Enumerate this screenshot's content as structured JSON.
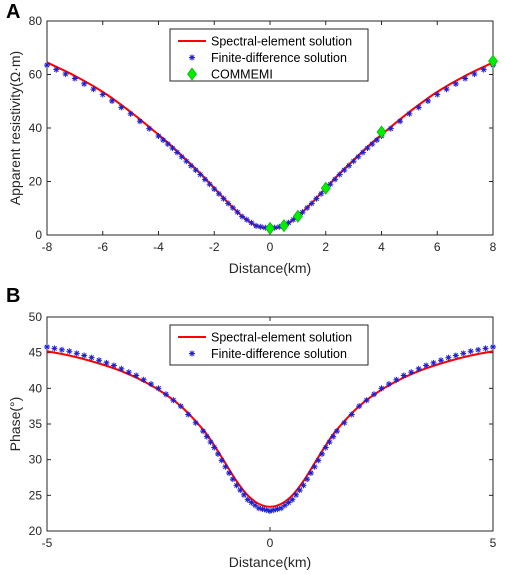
{
  "chart_data": [
    {
      "panel": "A",
      "type": "line",
      "xlabel": "Distance(km)",
      "ylabel": "Apparent resistivity(Ω·m)",
      "xlim": [
        -8,
        8
      ],
      "ylim": [
        0,
        80
      ],
      "xticks": [
        -8,
        -6,
        -4,
        -2,
        0,
        2,
        4,
        6,
        8
      ],
      "yticks": [
        0,
        20,
        40,
        60,
        80
      ],
      "grid": false,
      "legend_position": "top-center",
      "series": [
        {
          "name": "Spectral-element solution",
          "style": "line",
          "color": "#ff0000",
          "x": [
            -8,
            -7,
            -6,
            -5,
            -4,
            -3.5,
            -3,
            -2.5,
            -2,
            -1.5,
            -1,
            -0.5,
            0,
            0.5,
            1,
            1.5,
            2,
            2.5,
            3,
            3.5,
            4,
            5,
            6,
            7,
            8
          ],
          "y": [
            64.5,
            59.5,
            53.5,
            46,
            37.5,
            33,
            28,
            23,
            17.5,
            12,
            7,
            3.5,
            2.5,
            3.5,
            7,
            12,
            17.5,
            23,
            28,
            33,
            37.5,
            46,
            53.5,
            59.5,
            64.5
          ]
        },
        {
          "name": "Finite-difference solution",
          "style": "marker",
          "marker": "asterisk",
          "color": "#1f1fd0",
          "x": [
            -8,
            -7,
            -6,
            -5,
            -4,
            -3.5,
            -3,
            -2.5,
            -2,
            -1.5,
            -1,
            -0.5,
            0,
            0.5,
            1,
            1.5,
            2,
            2.5,
            3,
            3.5,
            4,
            5,
            6,
            7,
            8
          ],
          "y": [
            63.5,
            58.5,
            52.5,
            45.3,
            37,
            32.5,
            27.6,
            22.6,
            17.2,
            11.8,
            6.9,
            3.4,
            2.4,
            3.4,
            6.9,
            11.8,
            17.2,
            22.6,
            27.6,
            32.5,
            37,
            45.3,
            52.5,
            58.5,
            63.5
          ]
        },
        {
          "name": "COMMEMI",
          "style": "marker",
          "marker": "diamond",
          "color": "#00ee00",
          "x": [
            0,
            0.5,
            1,
            2,
            4,
            8
          ],
          "y": [
            2.5,
            3.5,
            7,
            17.5,
            38.5,
            65
          ]
        }
      ]
    },
    {
      "panel": "B",
      "type": "line",
      "xlabel": "Distance(km)",
      "ylabel": "Phase(°)",
      "xlim": [
        -5,
        5
      ],
      "ylim": [
        20,
        50
      ],
      "xticks": [
        -5,
        0,
        5
      ],
      "yticks": [
        20,
        25,
        30,
        35,
        40,
        45,
        50
      ],
      "grid": false,
      "legend_position": "top-center",
      "series": [
        {
          "name": "Spectral-element solution",
          "style": "line",
          "color": "#ff0000",
          "x": [
            -5,
            -4.5,
            -4,
            -3.5,
            -3,
            -2.5,
            -2,
            -1.5,
            -1.25,
            -1,
            -0.75,
            -0.5,
            -0.25,
            0,
            0.25,
            0.5,
            0.75,
            1,
            1.25,
            1.5,
            2,
            2.5,
            3,
            3.5,
            4,
            4.5,
            5
          ],
          "y": [
            45.2,
            44.6,
            43.8,
            42.8,
            41.5,
            39.8,
            37.5,
            34.2,
            32,
            29.5,
            27,
            25,
            23.8,
            23.4,
            23.8,
            25,
            27,
            29.5,
            32,
            34.2,
            37.5,
            39.8,
            41.5,
            42.8,
            43.8,
            44.6,
            45.2
          ]
        },
        {
          "name": "Finite-difference solution",
          "style": "marker",
          "marker": "asterisk",
          "color": "#1f1fd0",
          "x": [
            -5,
            -4.5,
            -4,
            -3.5,
            -3,
            -2.5,
            -2,
            -1.5,
            -1.25,
            -1,
            -0.75,
            -0.5,
            -0.25,
            0,
            0.25,
            0.5,
            0.75,
            1,
            1.25,
            1.5,
            2,
            2.5,
            3,
            3.5,
            4,
            4.5,
            5
          ],
          "y": [
            45.8,
            45.2,
            44.3,
            43.2,
            41.8,
            40,
            37.5,
            34,
            31.7,
            29,
            26.4,
            24.4,
            23.2,
            22.8,
            23.2,
            24.4,
            26.4,
            29,
            31.7,
            34,
            37.5,
            40,
            41.8,
            43.2,
            44.3,
            45.2,
            45.8
          ]
        }
      ]
    }
  ]
}
